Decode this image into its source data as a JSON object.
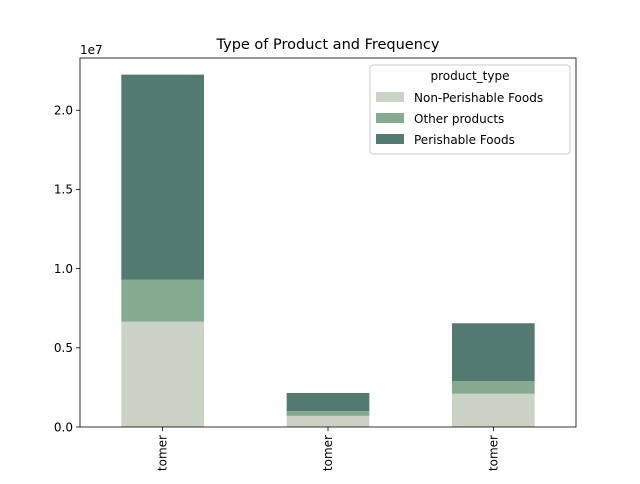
{
  "chart_data": {
    "type": "bar",
    "stacked": true,
    "title": "Type of Product and Frequency",
    "xlabel": "",
    "ylabel": "",
    "y_offset_label": "1e7",
    "y_scale_factor": 10000000,
    "ylim": [
      0,
      23300000
    ],
    "yticks": [
      0,
      5000000,
      10000000,
      15000000,
      20000000
    ],
    "ytick_labels": [
      "0.0",
      "0.5",
      "1.0",
      "1.5",
      "2.0"
    ],
    "categories": [
      "tomer",
      "tomer",
      "tomer"
    ],
    "grid": false,
    "legend": {
      "title": "product_type",
      "placement": "top-right"
    },
    "series": [
      {
        "name": "Non-Perishable Foods",
        "color": "#cbd3c6",
        "values": [
          6650000,
          700000,
          2100000
        ]
      },
      {
        "name": "Other products",
        "color": "#86aa8f",
        "values": [
          2650000,
          300000,
          800000
        ]
      },
      {
        "name": "Perishable Foods",
        "color": "#527a70",
        "values": [
          12950000,
          1150000,
          3650000
        ]
      }
    ]
  }
}
